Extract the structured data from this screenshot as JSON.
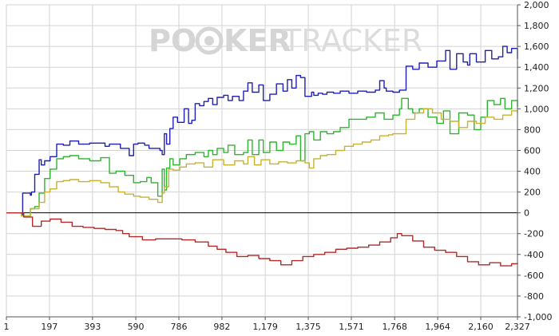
{
  "watermark": {
    "part1": "PO",
    "part2": "KER",
    "part3": "TRACKER",
    "color": "#cfcfcf"
  },
  "colors": {
    "background": "#ffffff",
    "grid": "#d3d3d3",
    "zero_line": "#000000",
    "axis": "#555555"
  },
  "chart_data": {
    "type": "line",
    "title": "",
    "xlabel": "",
    "ylabel": "",
    "xlim": [
      1,
      2327
    ],
    "ylim": [
      -1000,
      2000
    ],
    "x_ticks": [
      1,
      197,
      393,
      590,
      786,
      982,
      1179,
      1375,
      1571,
      1768,
      1964,
      2160,
      2327
    ],
    "x_tick_labels": [
      "1",
      "197",
      "393",
      "590",
      "786",
      "982",
      "1,179",
      "1,375",
      "1,571",
      "1,768",
      "1,964",
      "2,160",
      "2,327"
    ],
    "y_ticks": [
      -1000,
      -800,
      -600,
      -400,
      -200,
      0,
      200,
      400,
      600,
      800,
      1000,
      1200,
      1400,
      1600,
      1800,
      2000
    ],
    "y_tick_labels": [
      "-1,000",
      "-800",
      "-600",
      "-400",
      "-200",
      "0",
      "200",
      "400",
      "600",
      "800",
      "1,000",
      "1,200",
      "1,400",
      "1,600",
      "1,800",
      "2,000"
    ],
    "y_axis_position": "right",
    "grid": true,
    "series": [
      {
        "color": "#1f1fb4",
        "x": [
          1,
          40,
          70,
          75,
          110,
          115,
          130,
          150,
          160,
          175,
          200,
          230,
          260,
          290,
          330,
          380,
          450,
          470,
          520,
          560,
          580,
          600,
          630,
          650,
          700,
          710,
          720,
          730,
          745,
          760,
          780,
          810,
          830,
          845,
          860,
          880,
          900,
          920,
          940,
          960,
          990,
          1010,
          1030,
          1060,
          1080,
          1100,
          1120,
          1150,
          1170,
          1200,
          1230,
          1260,
          1280,
          1300,
          1320,
          1340,
          1360,
          1390,
          1400,
          1420,
          1440,
          1460,
          1490,
          1520,
          1560,
          1600,
          1640,
          1680,
          1700,
          1720,
          1730,
          1760,
          1790,
          1820,
          1850,
          1880,
          1920,
          1960,
          2000,
          2020,
          2050,
          2080,
          2100,
          2110,
          2140,
          2180,
          2210,
          2240,
          2260,
          2280,
          2300,
          2327
        ],
        "values": [
          0,
          0,
          -20,
          190,
          170,
          200,
          370,
          510,
          460,
          500,
          540,
          660,
          650,
          690,
          660,
          670,
          640,
          660,
          620,
          550,
          660,
          670,
          650,
          620,
          600,
          560,
          760,
          660,
          810,
          920,
          870,
          1000,
          860,
          890,
          1050,
          1030,
          1070,
          1100,
          1040,
          1110,
          1130,
          1080,
          1120,
          1080,
          1170,
          1250,
          1160,
          1230,
          1080,
          1140,
          1240,
          1170,
          1280,
          1200,
          1320,
          1300,
          1120,
          1160,
          1130,
          1150,
          1140,
          1160,
          1150,
          1170,
          1150,
          1170,
          1160,
          1180,
          1270,
          1200,
          1170,
          1160,
          1180,
          1410,
          1380,
          1440,
          1400,
          1460,
          1560,
          1380,
          1530,
          1450,
          1420,
          1530,
          1450,
          1560,
          1480,
          1500,
          1600,
          1540,
          1580,
          1480
        ]
      },
      {
        "color": "#2db52d",
        "x": [
          1,
          40,
          70,
          110,
          130,
          150,
          175,
          200,
          230,
          260,
          290,
          330,
          380,
          430,
          470,
          500,
          540,
          580,
          610,
          640,
          660,
          690,
          710,
          720,
          730,
          745,
          760,
          790,
          820,
          860,
          900,
          920,
          940,
          960,
          990,
          1010,
          1040,
          1080,
          1100,
          1120,
          1150,
          1170,
          1200,
          1230,
          1260,
          1290,
          1320,
          1340,
          1360,
          1380,
          1400,
          1430,
          1460,
          1490,
          1520,
          1560,
          1600,
          1640,
          1680,
          1700,
          1720,
          1760,
          1790,
          1800,
          1830,
          1850,
          1880,
          1920,
          1960,
          1990,
          2020,
          2060,
          2100,
          2130,
          2160,
          2190,
          2220,
          2250,
          2270,
          2300,
          2327
        ],
        "values": [
          0,
          0,
          -30,
          40,
          60,
          190,
          330,
          420,
          520,
          540,
          550,
          520,
          500,
          530,
          380,
          400,
          360,
          290,
          300,
          340,
          290,
          160,
          420,
          220,
          430,
          520,
          460,
          520,
          560,
          580,
          540,
          600,
          560,
          620,
          580,
          650,
          560,
          580,
          700,
          560,
          700,
          580,
          680,
          600,
          680,
          660,
          740,
          500,
          760,
          780,
          700,
          780,
          760,
          780,
          820,
          900,
          900,
          920,
          960,
          960,
          900,
          940,
          1000,
          1100,
          1000,
          960,
          1000,
          920,
          860,
          980,
          760,
          960,
          940,
          800,
          920,
          1080,
          1040,
          1100,
          1000,
          1080,
          1020
        ]
      },
      {
        "color": "#c9b12e",
        "x": [
          1,
          40,
          70,
          110,
          150,
          175,
          200,
          230,
          260,
          290,
          330,
          380,
          430,
          470,
          510,
          540,
          580,
          610,
          650,
          690,
          710,
          720,
          740,
          760,
          790,
          820,
          860,
          900,
          940,
          990,
          1040,
          1080,
          1100,
          1130,
          1160,
          1200,
          1240,
          1280,
          1320,
          1360,
          1380,
          1400,
          1430,
          1460,
          1500,
          1540,
          1580,
          1620,
          1660,
          1700,
          1740,
          1760,
          1790,
          1820,
          1860,
          1900,
          1940,
          1980,
          2020,
          2060,
          2100,
          2140,
          2180,
          2220,
          2260,
          2300,
          2327
        ],
        "values": [
          0,
          0,
          -30,
          40,
          100,
          200,
          230,
          300,
          310,
          320,
          300,
          310,
          290,
          250,
          200,
          180,
          160,
          150,
          130,
          100,
          190,
          250,
          420,
          410,
          440,
          470,
          480,
          440,
          510,
          460,
          500,
          470,
          540,
          460,
          510,
          470,
          490,
          480,
          500,
          480,
          430,
          520,
          550,
          560,
          600,
          640,
          660,
          680,
          700,
          740,
          750,
          760,
          760,
          900,
          960,
          1000,
          960,
          900,
          880,
          820,
          880,
          860,
          920,
          900,
          940,
          980,
          960
        ]
      },
      {
        "color": "#b22b2b",
        "x": [
          1,
          40,
          80,
          120,
          160,
          200,
          250,
          300,
          350,
          400,
          450,
          500,
          530,
          560,
          620,
          680,
          740,
          800,
          860,
          920,
          960,
          1000,
          1050,
          1100,
          1150,
          1200,
          1250,
          1300,
          1350,
          1400,
          1450,
          1500,
          1550,
          1600,
          1650,
          1700,
          1750,
          1780,
          1800,
          1850,
          1900,
          1950,
          2000,
          2050,
          2100,
          2150,
          2200,
          2250,
          2300,
          2327
        ],
        "values": [
          0,
          0,
          -40,
          -130,
          -80,
          -60,
          -90,
          -130,
          -140,
          -150,
          -160,
          -170,
          -200,
          -230,
          -260,
          -250,
          -250,
          -260,
          -280,
          -320,
          -350,
          -380,
          -420,
          -410,
          -440,
          -460,
          -500,
          -460,
          -420,
          -400,
          -380,
          -350,
          -340,
          -330,
          -310,
          -280,
          -240,
          -200,
          -220,
          -270,
          -330,
          -360,
          -380,
          -420,
          -470,
          -500,
          -480,
          -510,
          -490,
          -480
        ]
      }
    ]
  }
}
